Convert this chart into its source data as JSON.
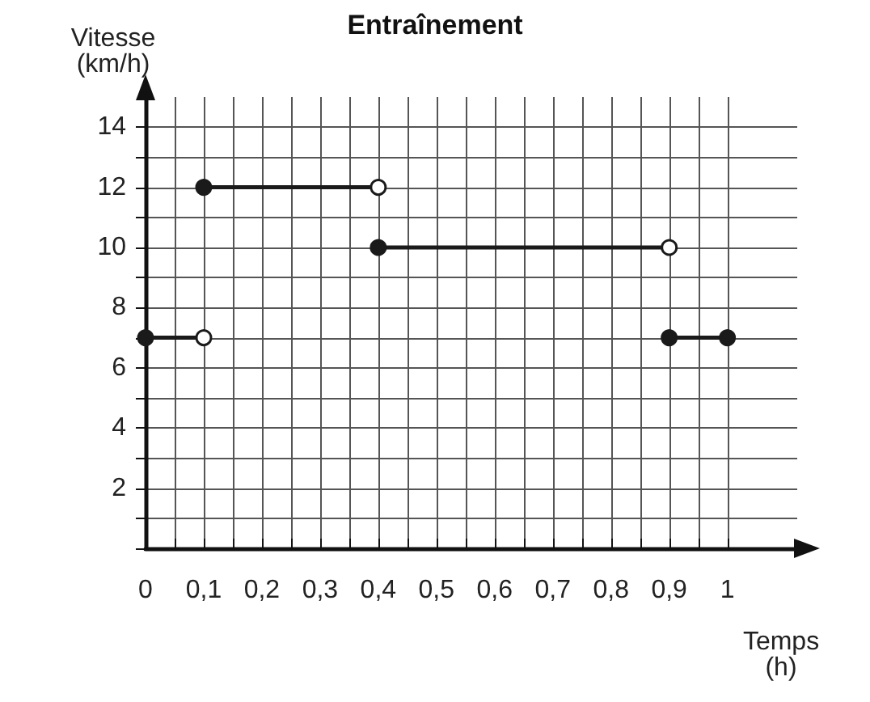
{
  "chart_data": {
    "type": "line",
    "title": "Entraînement",
    "xlabel": "Temps\n(h)",
    "ylabel": "Vitesse\n(km/h)",
    "xlim": [
      0,
      1.12
    ],
    "ylim": [
      0,
      15
    ],
    "xticks": [
      0,
      {
        "value": 0.05,
        "label": null
      },
      {
        "value": 0.1,
        "label": "0,1"
      },
      {
        "value": 0.15,
        "label": null
      },
      {
        "value": 0.2,
        "label": "0,2"
      },
      {
        "value": 0.25,
        "label": null
      },
      {
        "value": 0.3,
        "label": "0,3"
      },
      {
        "value": 0.35,
        "label": null
      },
      {
        "value": 0.4,
        "label": "0,4"
      },
      {
        "value": 0.45,
        "label": null
      },
      {
        "value": 0.5,
        "label": "0,5"
      },
      {
        "value": 0.55,
        "label": null
      },
      {
        "value": 0.6,
        "label": "0,6"
      },
      {
        "value": 0.65,
        "label": null
      },
      {
        "value": 0.7,
        "label": "0,7"
      },
      {
        "value": 0.75,
        "label": null
      },
      {
        "value": 0.8,
        "label": "0,8"
      },
      {
        "value": 0.85,
        "label": null
      },
      {
        "value": 0.9,
        "label": "0,9"
      },
      {
        "value": 0.95,
        "label": null
      },
      {
        "value": 1,
        "label": "1"
      }
    ],
    "yticks": [
      {
        "value": 0,
        "label": null
      },
      {
        "value": 1,
        "label": null
      },
      2,
      {
        "value": 3,
        "label": null
      },
      4,
      {
        "value": 5,
        "label": null
      },
      6,
      {
        "value": 7,
        "label": null
      },
      8,
      {
        "value": 9,
        "label": null
      },
      10,
      {
        "value": 11,
        "label": null
      },
      12,
      {
        "value": 13,
        "label": null
      },
      14
    ],
    "grid": true,
    "marker": "circle",
    "line_style": "solid",
    "series": [
      {
        "color": "#1a1a1a",
        "x": [
          0,
          0.1
        ],
        "values": [
          7,
          7
        ],
        "colors": [
          "#1a1a1a",
          "#ffffff"
        ]
      },
      {
        "color": "#1a1a1a",
        "x": [
          0.1,
          0.4
        ],
        "values": [
          12,
          12
        ],
        "colors": [
          "#1a1a1a",
          "#ffffff"
        ]
      },
      {
        "color": "#1a1a1a",
        "x": [
          0.4,
          0.9
        ],
        "values": [
          10,
          10
        ],
        "colors": [
          "#1a1a1a",
          "#ffffff"
        ]
      },
      {
        "color": "#1a1a1a",
        "x": [
          0.9,
          1
        ],
        "values": [
          7,
          7
        ],
        "colors": [
          "#1a1a1a",
          "#1a1a1a"
        ]
      }
    ]
  }
}
